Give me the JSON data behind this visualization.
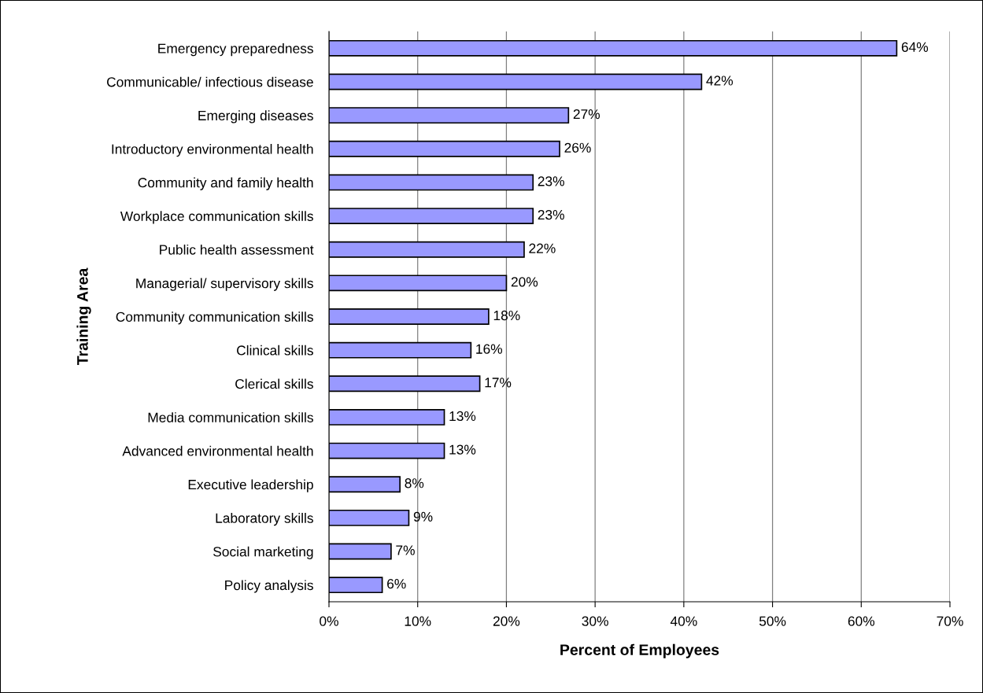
{
  "chart_data": {
    "type": "bar",
    "orientation": "horizontal",
    "xlabel": "Percent of Employees",
    "ylabel": "Training Area",
    "categories": [
      "Emergency preparedness",
      "Communicable/ infectious disease",
      "Emerging diseases",
      "Introductory environmental health",
      "Community and family health",
      "Workplace communication skills",
      "Public health assessment",
      "Managerial/ supervisory skills",
      "Community communication skills",
      "Clinical skills",
      "Clerical skills",
      "Media communication skills",
      "Advanced environmental health",
      "Executive leadership",
      "Laboratory skills",
      "Social marketing",
      "Policy analysis"
    ],
    "values": [
      64,
      42,
      27,
      26,
      23,
      23,
      22,
      20,
      18,
      16,
      17,
      13,
      13,
      8,
      9,
      7,
      6
    ],
    "value_labels": [
      "64%",
      "42%",
      "27%",
      "26%",
      "23%",
      "23%",
      "22%",
      "20%",
      "18%",
      "16%",
      "17%",
      "13%",
      "13%",
      "8%",
      "9%",
      "7%",
      "6%"
    ],
    "color": "#9999ff",
    "xlim": [
      0,
      70
    ],
    "xticks": [
      {
        "value": 0,
        "label": "0%"
      },
      {
        "value": 10,
        "label": "10%"
      },
      {
        "value": 20,
        "label": "20%"
      },
      {
        "value": 30,
        "label": "30%"
      },
      {
        "value": 40,
        "label": "40%"
      },
      {
        "value": 50,
        "label": "50%"
      },
      {
        "value": 60,
        "label": "60%"
      },
      {
        "value": 70,
        "label": "70%"
      }
    ],
    "grid": "x",
    "legend": false
  }
}
